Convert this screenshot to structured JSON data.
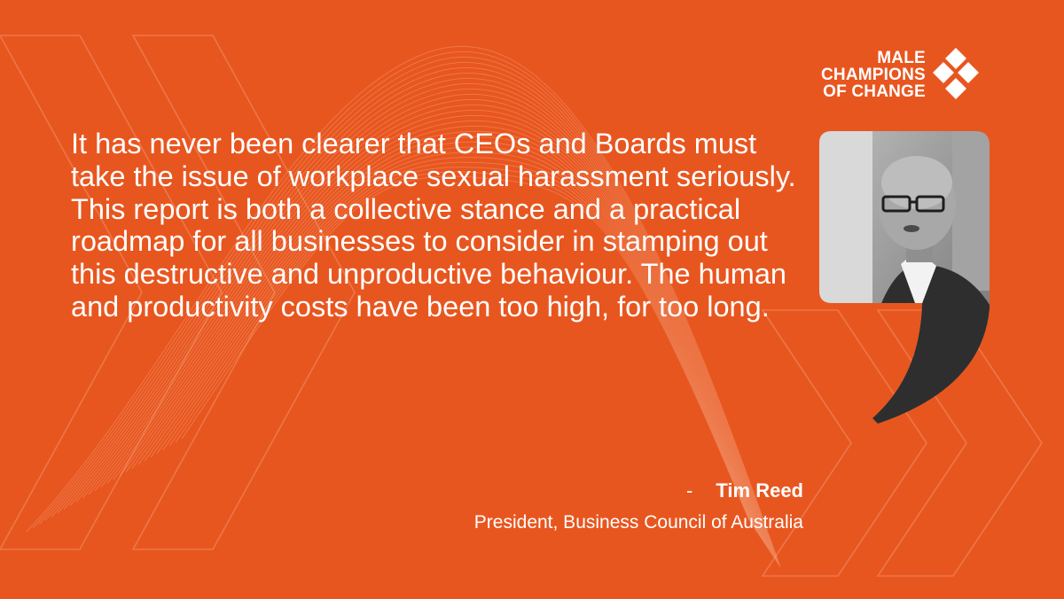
{
  "brand": {
    "background_color": "#e8561f",
    "text_color": "#ffffff",
    "logo_lines": [
      "MALE",
      "CHAMPIONS",
      "OF CHANGE"
    ]
  },
  "quote": {
    "text": "It has never been clearer that CEOs and Boards must take the issue of workplace sexual harassment seriously. This report is both a collective stance and a practical roadmap for all businesses to consider in stamping out this destructive and unproductive behaviour. The human and productivity costs have been too high, for too long."
  },
  "attribution": {
    "dash": "-",
    "name": "Tim Reed",
    "title": "President, Business Council of Australia"
  }
}
